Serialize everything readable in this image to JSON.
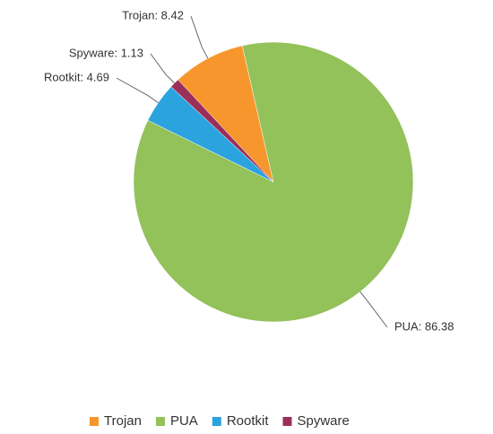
{
  "chart_data": {
    "type": "pie",
    "categories": [
      "Trojan",
      "PUA",
      "Rootkit",
      "Spyware"
    ],
    "values": [
      8.42,
      86.38,
      4.69,
      1.13
    ],
    "value_labels": [
      "Trojan: 8.42",
      "PUA: 86.38",
      "Rootkit: 4.69",
      "Spyware: 1.13"
    ],
    "colors": [
      "#f7962c",
      "#93c15a",
      "#2ba3de",
      "#9b2f5a"
    ],
    "legend": "bottom"
  }
}
